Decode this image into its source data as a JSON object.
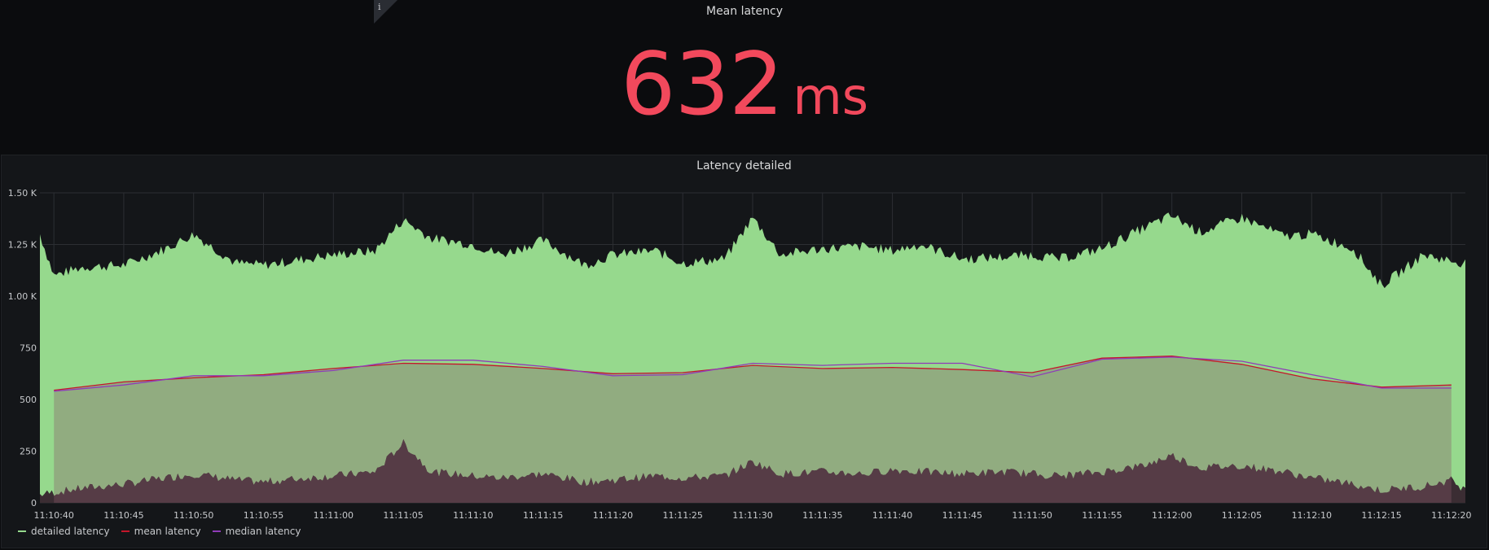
{
  "stat": {
    "title": "Mean latency",
    "value": "632",
    "unit": "ms",
    "color": "#f2495c",
    "info_icon": "i"
  },
  "graph": {
    "title": "Latency detailed"
  },
  "chart_data": {
    "type": "area",
    "title": "Latency detailed",
    "ylim": [
      0,
      1500
    ],
    "y_ticks": [
      0,
      250,
      500,
      750,
      1000,
      1250,
      1500
    ],
    "y_tick_labels": [
      "0",
      "250",
      "500",
      "750",
      "1.00 K",
      "1.25 K",
      "1.50 K"
    ],
    "x_tick_labels": [
      "11:10:40",
      "11:10:45",
      "11:10:50",
      "11:10:55",
      "11:11:00",
      "11:11:05",
      "11:11:10",
      "11:11:15",
      "11:11:20",
      "11:11:25",
      "11:11:30",
      "11:11:35",
      "11:11:40",
      "11:11:45",
      "11:11:50",
      "11:11:55",
      "11:12:00",
      "11:12:05",
      "11:12:10",
      "11:12:15",
      "11:12:20"
    ],
    "x_range_seconds": [
      "11:10:39",
      "11:12:21"
    ],
    "grid": true,
    "legend_placement": "bottom-left",
    "series": [
      {
        "name": "detailed latency",
        "color": "#96d98d",
        "kind": "band",
        "x": [
          "11:10:39",
          "11:10:40",
          "11:10:42",
          "11:10:45",
          "11:10:48",
          "11:10:50",
          "11:10:53",
          "11:10:55",
          "11:10:58",
          "11:11:00",
          "11:11:03",
          "11:11:05",
          "11:11:07",
          "11:11:10",
          "11:11:12",
          "11:11:15",
          "11:11:18",
          "11:11:20",
          "11:11:23",
          "11:11:25",
          "11:11:28",
          "11:11:30",
          "11:11:32",
          "11:11:35",
          "11:11:38",
          "11:11:40",
          "11:11:42",
          "11:11:45",
          "11:11:48",
          "11:11:50",
          "11:11:52",
          "11:11:55",
          "11:11:58",
          "11:12:00",
          "11:12:02",
          "11:12:05",
          "11:12:08",
          "11:12:10",
          "11:12:13",
          "11:12:15",
          "11:12:18",
          "11:12:20",
          "11:12:21"
        ],
        "upper": [
          1300,
          1100,
          1140,
          1150,
          1230,
          1300,
          1160,
          1150,
          1180,
          1200,
          1220,
          1370,
          1280,
          1250,
          1200,
          1270,
          1150,
          1200,
          1220,
          1160,
          1180,
          1380,
          1200,
          1230,
          1240,
          1220,
          1250,
          1180,
          1190,
          1200,
          1180,
          1230,
          1330,
          1390,
          1310,
          1380,
          1290,
          1300,
          1230,
          1050,
          1200,
          1170,
          1160
        ],
        "lower": [
          40,
          50,
          70,
          90,
          120,
          140,
          110,
          100,
          120,
          130,
          150,
          290,
          150,
          130,
          120,
          140,
          100,
          110,
          130,
          120,
          130,
          200,
          140,
          150,
          140,
          160,
          150,
          140,
          150,
          140,
          130,
          150,
          180,
          230,
          170,
          180,
          150,
          120,
          90,
          60,
          80,
          110,
          60
        ]
      },
      {
        "name": "mean latency",
        "color": "#c4162a",
        "kind": "line",
        "x": [
          "11:10:40",
          "11:10:45",
          "11:10:50",
          "11:10:55",
          "11:11:00",
          "11:11:05",
          "11:11:10",
          "11:11:15",
          "11:11:20",
          "11:11:25",
          "11:11:30",
          "11:11:35",
          "11:11:40",
          "11:11:45",
          "11:11:50",
          "11:11:55",
          "11:12:00",
          "11:12:05",
          "11:12:10",
          "11:12:15",
          "11:12:20"
        ],
        "values": [
          545,
          585,
          605,
          620,
          650,
          675,
          670,
          650,
          625,
          630,
          665,
          650,
          655,
          645,
          630,
          700,
          710,
          670,
          600,
          560,
          570
        ]
      },
      {
        "name": "median latency",
        "color": "#8f3bb8",
        "kind": "line",
        "x": [
          "11:10:40",
          "11:10:45",
          "11:10:50",
          "11:10:55",
          "11:11:00",
          "11:11:05",
          "11:11:10",
          "11:11:15",
          "11:11:20",
          "11:11:25",
          "11:11:30",
          "11:11:35",
          "11:11:40",
          "11:11:45",
          "11:11:50",
          "11:11:55",
          "11:12:00",
          "11:12:05",
          "11:12:10",
          "11:12:15",
          "11:12:20"
        ],
        "values": [
          540,
          570,
          615,
          615,
          640,
          690,
          690,
          660,
          615,
          620,
          675,
          665,
          675,
          675,
          610,
          695,
          705,
          685,
          620,
          555,
          555
        ]
      }
    ]
  }
}
